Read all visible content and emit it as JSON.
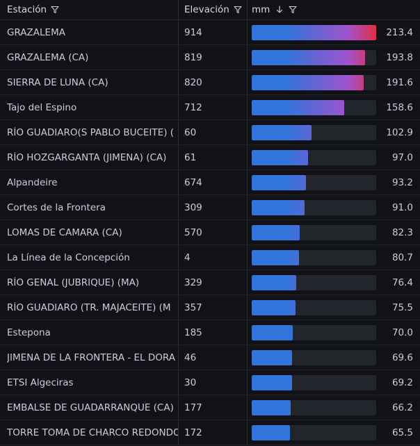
{
  "table": {
    "headers": {
      "station": "Estación",
      "elevation": "Elevación",
      "mm": "mm"
    },
    "icons": {
      "filter": "filter-icon",
      "sort": "arrow-down-icon"
    },
    "colors": {
      "bar_blue": "#3274d9",
      "bar_purple": "#a352cc",
      "bar_red": "#e02f44",
      "track": "#22252b"
    },
    "bar_max": 213.4,
    "rows": [
      {
        "station": "GRAZALEMA",
        "elevation": "914",
        "mm": "213.4"
      },
      {
        "station": "GRAZALEMA (CA)",
        "elevation": "819",
        "mm": "193.8"
      },
      {
        "station": "SIERRA DE LUNA (CA)",
        "elevation": "820",
        "mm": "191.6"
      },
      {
        "station": "Tajo del Espino",
        "elevation": "712",
        "mm": "158.6"
      },
      {
        "station": "RÍO GUADIARO(S PABLO BUCEITE) (",
        "elevation": "60",
        "mm": "102.9"
      },
      {
        "station": "RÍO HOZGARGANTA (JIMENA) (CA)",
        "elevation": "61",
        "mm": "97.0"
      },
      {
        "station": "Alpandeire",
        "elevation": "674",
        "mm": "93.2"
      },
      {
        "station": "Cortes de la Frontera",
        "elevation": "309",
        "mm": "91.0"
      },
      {
        "station": "LOMAS DE CAMARA (CA)",
        "elevation": "570",
        "mm": "82.3"
      },
      {
        "station": "La Línea de la Concepción",
        "elevation": "4",
        "mm": "80.7"
      },
      {
        "station": "RÍO GENAL (JUBRIQUE) (MA)",
        "elevation": "329",
        "mm": "76.4"
      },
      {
        "station": "RÍO GUADIARO (TR. MAJACEITE) (M",
        "elevation": "357",
        "mm": "75.5"
      },
      {
        "station": "Estepona",
        "elevation": "185",
        "mm": "70.0"
      },
      {
        "station": "JIMENA DE LA FRONTERA - EL DORA",
        "elevation": "46",
        "mm": "69.6"
      },
      {
        "station": "ETSI Algeciras",
        "elevation": "30",
        "mm": "69.2"
      },
      {
        "station": "EMBALSE DE GUADARRANQUE (CA)",
        "elevation": "177",
        "mm": "66.2"
      },
      {
        "station": "TORRE TOMA DE CHARCO REDONDO",
        "elevation": "172",
        "mm": "65.5"
      }
    ]
  }
}
